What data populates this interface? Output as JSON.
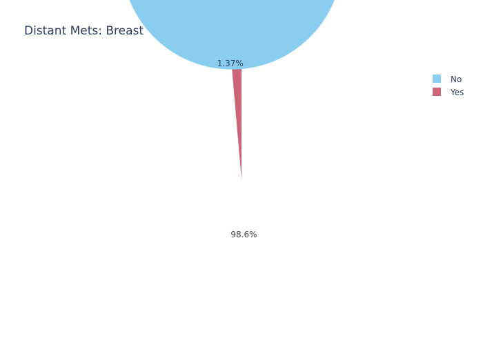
{
  "chart_data": {
    "type": "pie",
    "title": "Distant Mets: Breast",
    "categories": [
      "No",
      "Yes"
    ],
    "values": [
      98.63,
      1.37
    ],
    "value_labels": [
      "98.6%",
      "1.37%"
    ],
    "colors": {
      "No": "#89cdef",
      "Yes": "#cc6677"
    },
    "legend_position": "top-right",
    "direction": "counterclockwise",
    "start_angle_deg": 90
  }
}
